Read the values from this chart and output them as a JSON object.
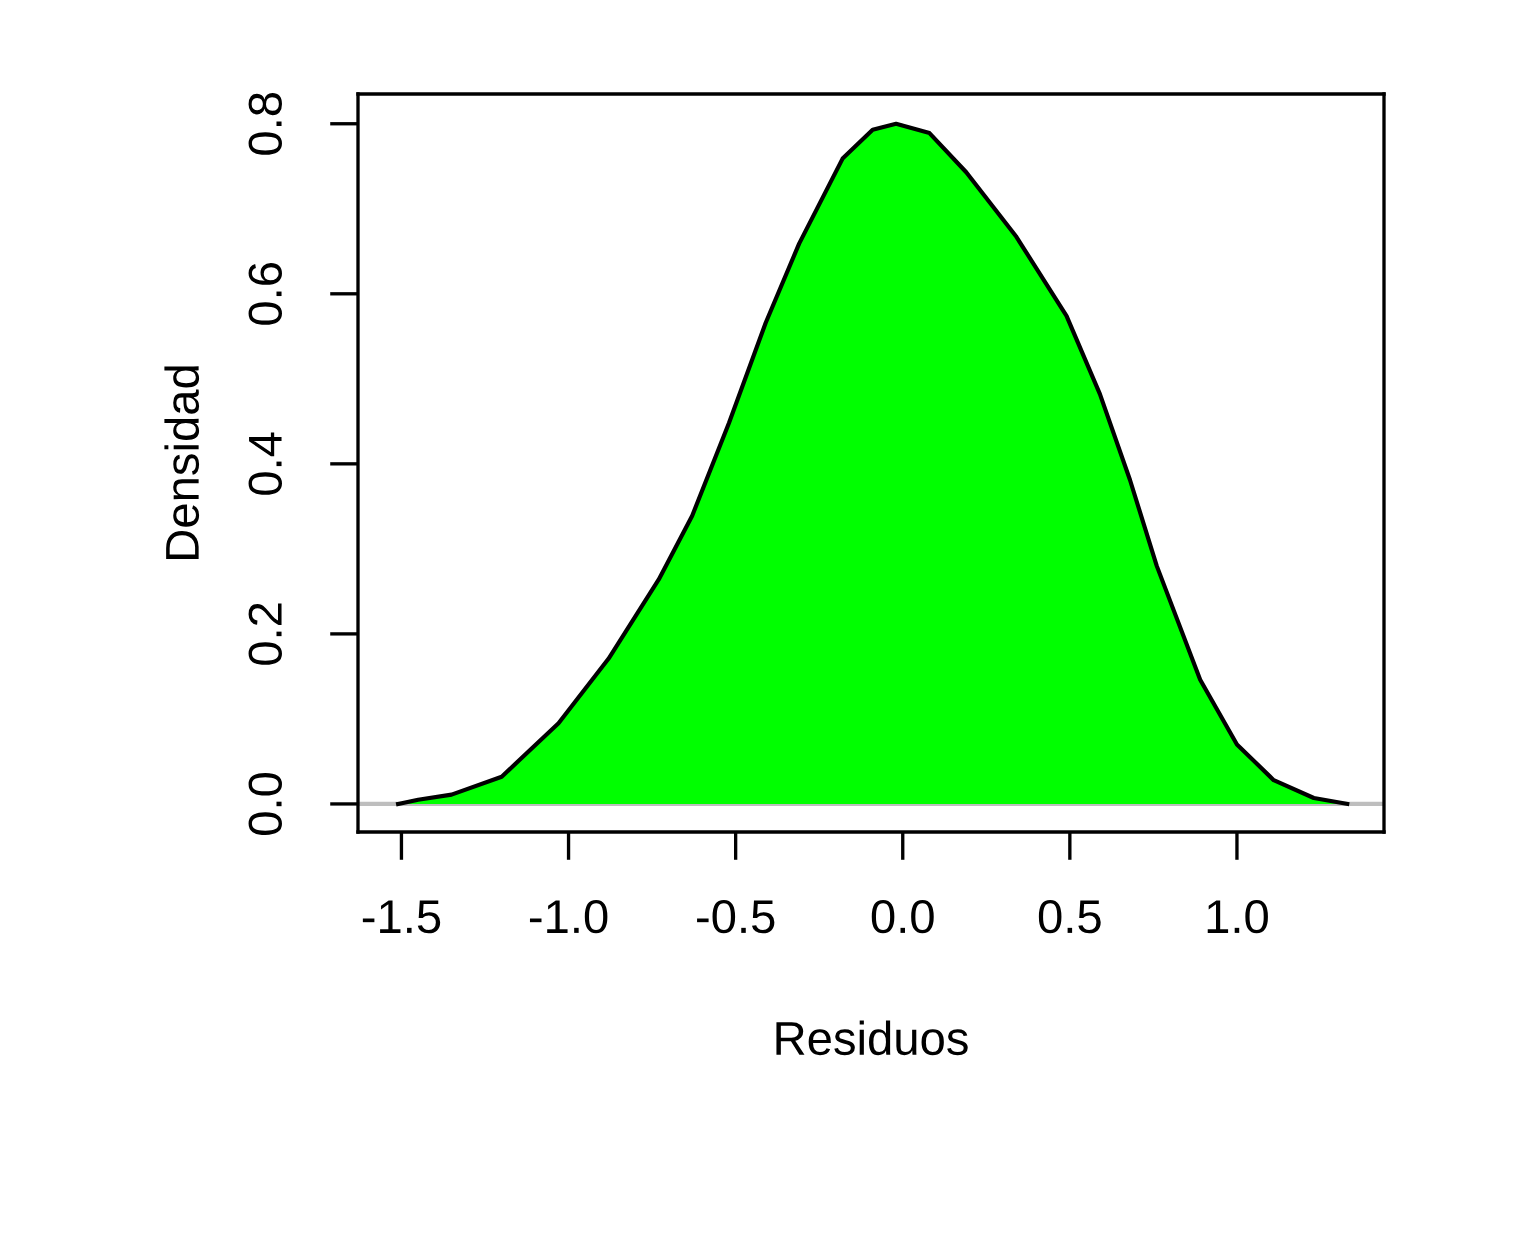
{
  "chart_data": {
    "type": "area",
    "xlabel": "Residuos",
    "ylabel": "Densidad",
    "x": [
      -1.51,
      -1.45,
      -1.35,
      -1.2,
      -1.03,
      -0.88,
      -0.73,
      -0.63,
      -0.52,
      -0.41,
      -0.31,
      -0.18,
      -0.09,
      -0.02,
      0.08,
      0.19,
      0.34,
      0.49,
      0.59,
      0.68,
      0.76,
      0.89,
      1.0,
      1.11,
      1.23,
      1.33
    ],
    "series": [
      {
        "color": "#00ff00",
        "values": [
          0,
          0.005,
          0.011,
          0.032,
          0.095,
          0.171,
          0.264,
          0.339,
          0.448,
          0.566,
          0.659,
          0.759,
          0.793,
          0.8,
          0.789,
          0.743,
          0.667,
          0.574,
          0.482,
          0.381,
          0.28,
          0.146,
          0.07,
          0.028,
          0.007,
          0
        ]
      }
    ],
    "xlim": [
      -1.63,
      1.44
    ],
    "ylim": [
      -0.033,
      0.835
    ],
    "xticks": [
      {
        "value": -1.5,
        "label": "-1.5"
      },
      {
        "value": -1.0,
        "label": "-1.0"
      },
      {
        "value": -0.5,
        "label": "-0.5"
      },
      {
        "value": 0.0,
        "label": "0.0"
      },
      {
        "value": 0.5,
        "label": "0.5"
      },
      {
        "value": 1.0,
        "label": "1.0"
      }
    ],
    "yticks": [
      {
        "value": 0.0,
        "label": "0.0"
      },
      {
        "value": 0.2,
        "label": "0.2"
      },
      {
        "value": 0.4,
        "label": "0.4"
      },
      {
        "value": 0.6,
        "label": "0.6"
      },
      {
        "value": 0.8,
        "label": "0.8"
      }
    ],
    "ref_lines": [
      {
        "axis": "y",
        "value": 0,
        "color": "#bebebe"
      }
    ],
    "grid": false
  }
}
